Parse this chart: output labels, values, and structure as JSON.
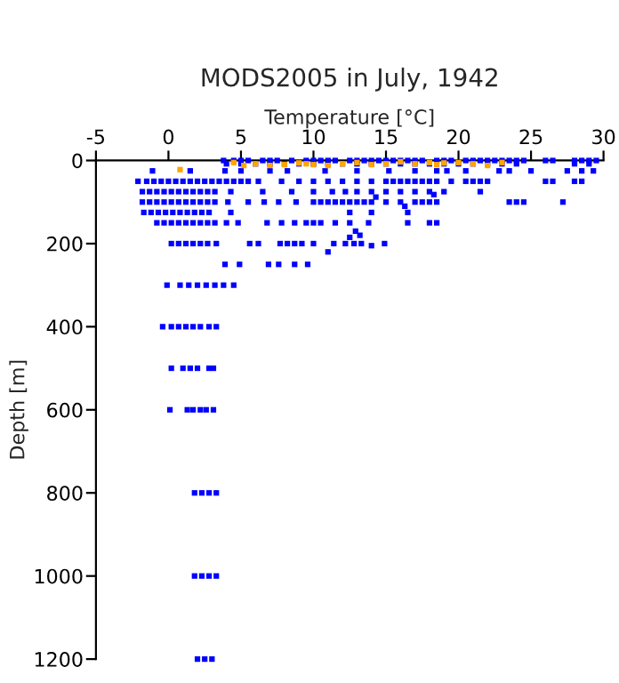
{
  "chart_data": {
    "type": "scatter",
    "title": "MODS2005 in July, 1942",
    "xlabel": "Temperature [°C]",
    "ylabel": "Depth [m]",
    "xlim": [
      -5,
      30
    ],
    "xticks": [
      -5,
      0,
      5,
      10,
      15,
      20,
      25,
      30
    ],
    "ylim": [
      1200,
      0
    ],
    "yticks": [
      0,
      200,
      400,
      600,
      800,
      1000,
      1200
    ],
    "marker": "square",
    "grid": false,
    "legend": false,
    "series": [
      {
        "color": "#0000ff",
        "x": [
          3.8,
          4.5,
          5,
          5.5,
          6.5,
          7,
          7.5,
          8.5,
          9.5,
          10,
          10.5,
          11,
          11.5,
          12.5,
          13,
          13.5,
          14,
          14.5,
          15,
          15.5,
          16,
          16.5,
          17,
          17.5,
          18.5,
          19,
          19.5,
          20.5,
          21,
          21.5,
          22,
          22.5,
          23,
          23.5,
          24,
          24.5,
          26,
          26.5,
          28,
          28.5,
          29,
          29.5,
          4,
          5,
          6,
          7,
          8,
          9,
          10,
          11,
          12,
          13,
          14,
          15,
          16,
          17,
          18,
          19,
          20,
          21,
          22,
          23,
          24,
          28,
          29,
          -1.1,
          1.5,
          3.9,
          5,
          7,
          8.2,
          10.8,
          13,
          15.2,
          17,
          18.5,
          19.2,
          20.5,
          22.8,
          23.5,
          25,
          27.5,
          28.5,
          29.3,
          -2.1,
          -1.5,
          -1,
          -0.5,
          0,
          0.5,
          1,
          1.5,
          2,
          2.5,
          3,
          3.5,
          4,
          4.5,
          5,
          5.5,
          6.2,
          7.8,
          9,
          10,
          11,
          12,
          13,
          14,
          15,
          15.5,
          16,
          16.5,
          17,
          17.5,
          18,
          18.5,
          19.5,
          20.5,
          21,
          21.5,
          22,
          26,
          26.5,
          28,
          28.5,
          -1.8,
          -1.3,
          -0.8,
          -0.3,
          0.2,
          0.7,
          1.2,
          1.7,
          2.2,
          2.7,
          3.2,
          4.3,
          6.5,
          8.5,
          10,
          11.3,
          12.2,
          13,
          14,
          15,
          16,
          17,
          18,
          19,
          21.5,
          -1.8,
          -1.3,
          -0.8,
          -0.3,
          0.2,
          0.7,
          1.2,
          1.7,
          2.2,
          2.7,
          3.2,
          4.1,
          5.5,
          6.6,
          7.6,
          8.8,
          10,
          10.5,
          11,
          11.5,
          12,
          12.5,
          13,
          13.5,
          14,
          15,
          16,
          17,
          17.5,
          18,
          18.5,
          23.5,
          24,
          24.5,
          27.2,
          -1.7,
          -1.2,
          -0.7,
          -0.2,
          0.3,
          0.8,
          1.3,
          1.8,
          2.3,
          2.8,
          4.3,
          12.5,
          14,
          16.5,
          -0.8,
          -0.3,
          0.2,
          0.7,
          1.2,
          1.7,
          2.2,
          2.7,
          3.2,
          4,
          4.8,
          6.8,
          7.8,
          8.7,
          9.5,
          10,
          10.5,
          11.5,
          12.5,
          13.8,
          16.5,
          18,
          18.5,
          0.2,
          0.7,
          1.2,
          1.7,
          2.2,
          2.7,
          3.3,
          5.6,
          6.2,
          7.7,
          8.2,
          8.7,
          9.2,
          10,
          11.4,
          12.2,
          12.8,
          13.3,
          14.9,
          3.9,
          4.9,
          6.9,
          7.6,
          8.7,
          9.6,
          -0.1,
          0.8,
          1.4,
          2,
          2.6,
          3.2,
          3.8,
          4.5,
          -0.4,
          0.2,
          0.7,
          1.2,
          1.7,
          2.2,
          2.8,
          3.3,
          0.2,
          1,
          1.5,
          2,
          2.8,
          3.1,
          0.1,
          1.3,
          1.7,
          2.2,
          2.6,
          3.1,
          1.8,
          2.3,
          2.8,
          3.3,
          1.8,
          2.3,
          2.8,
          3.3,
          2,
          2.5,
          3,
          12.9,
          14,
          13.2,
          11,
          12.5,
          16.3,
          18.3,
          14.3
        ],
        "values": [
          0,
          0,
          0,
          0,
          0,
          0,
          0,
          0,
          0,
          0,
          0,
          0,
          0,
          0,
          0,
          0,
          0,
          0,
          0,
          0,
          0,
          0,
          0,
          0,
          0,
          0,
          0,
          0,
          0,
          0,
          0,
          0,
          0,
          0,
          0,
          0,
          0,
          0,
          0,
          0,
          0,
          0,
          8,
          8,
          8,
          8,
          8,
          8,
          8,
          8,
          8,
          8,
          8,
          8,
          8,
          8,
          8,
          8,
          8,
          8,
          8,
          8,
          8,
          8,
          8,
          25,
          25,
          25,
          25,
          25,
          25,
          25,
          25,
          25,
          25,
          25,
          25,
          25,
          25,
          25,
          25,
          25,
          25,
          25,
          50,
          50,
          50,
          50,
          50,
          50,
          50,
          50,
          50,
          50,
          50,
          50,
          50,
          50,
          50,
          50,
          50,
          50,
          50,
          50,
          50,
          50,
          50,
          50,
          50,
          50,
          50,
          50,
          50,
          50,
          50,
          50,
          50,
          50,
          50,
          50,
          50,
          50,
          50,
          50,
          50,
          75,
          75,
          75,
          75,
          75,
          75,
          75,
          75,
          75,
          75,
          75,
          75,
          75,
          75,
          75,
          75,
          75,
          75,
          75,
          75,
          75,
          75,
          75,
          75,
          75,
          100,
          100,
          100,
          100,
          100,
          100,
          100,
          100,
          100,
          100,
          100,
          100,
          100,
          100,
          100,
          100,
          100,
          100,
          100,
          100,
          100,
          100,
          100,
          100,
          100,
          100,
          100,
          100,
          100,
          100,
          100,
          100,
          100,
          100,
          100,
          125,
          125,
          125,
          125,
          125,
          125,
          125,
          125,
          125,
          125,
          125,
          125,
          125,
          125,
          150,
          150,
          150,
          150,
          150,
          150,
          150,
          150,
          150,
          150,
          150,
          150,
          150,
          150,
          150,
          150,
          150,
          150,
          150,
          150,
          150,
          150,
          150,
          200,
          200,
          200,
          200,
          200,
          200,
          200,
          200,
          200,
          200,
          200,
          200,
          200,
          200,
          200,
          200,
          200,
          200,
          200,
          250,
          250,
          250,
          250,
          250,
          250,
          300,
          300,
          300,
          300,
          300,
          300,
          300,
          300,
          400,
          400,
          400,
          400,
          400,
          400,
          400,
          400,
          500,
          500,
          500,
          500,
          500,
          500,
          600,
          600,
          600,
          600,
          600,
          600,
          800,
          800,
          800,
          800,
          1000,
          1000,
          1000,
          1000,
          1200,
          1200,
          1200,
          170,
          205,
          180,
          220,
          185,
          110,
          82,
          88
        ]
      },
      {
        "color": "#ffa500",
        "x": [
          4.5,
          6,
          7,
          8,
          9,
          10,
          11,
          12,
          13,
          14,
          15,
          16,
          17,
          18,
          19,
          20,
          21,
          22,
          23,
          0.8,
          5.2,
          9.5,
          18.5
        ],
        "values": [
          5,
          8,
          12,
          10,
          6,
          10,
          12,
          8,
          5,
          10,
          8,
          3,
          8,
          5,
          6,
          5,
          8,
          12,
          5,
          22,
          12,
          8,
          10
        ]
      }
    ]
  }
}
